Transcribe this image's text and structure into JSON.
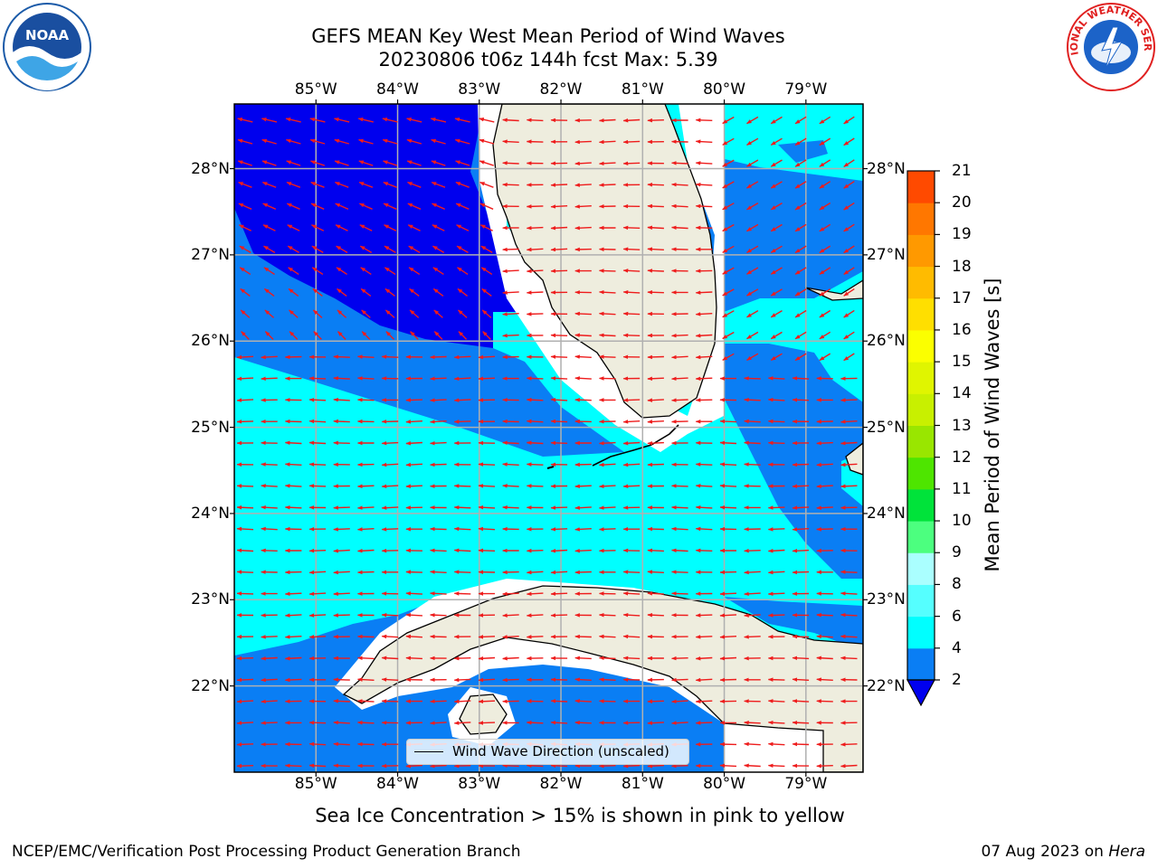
{
  "header": {
    "title_line1": "GEFS MEAN Key West Mean Period of Wind Waves",
    "title_line2": "20230806 t06z 144h fcst   Max: 5.39"
  },
  "logos": {
    "left": {
      "name": "noaa-logo",
      "text": "NOAA"
    },
    "right": {
      "name": "national-weather-service-logo",
      "text": "NATIONAL WEATHER SERVICE"
    }
  },
  "map": {
    "region": "Key West",
    "lon_range": [
      -86.0,
      -78.3
    ],
    "lat_range": [
      21.0,
      28.75
    ],
    "lon_labels": [
      "85°W",
      "84°W",
      "83°W",
      "82°W",
      "81°W",
      "80°W",
      "79°W"
    ],
    "lat_labels": [
      "28°N",
      "27°N",
      "26°N",
      "25°N",
      "24°N",
      "23°N",
      "22°N"
    ],
    "colors": {
      "land": "#eeedde",
      "ocean_below_2": "#0000ee",
      "band_2_4": "#0a7ef4",
      "band_4_6": "#00ffff",
      "arrows": "#ee1c1c",
      "grid": "#b0b0b0"
    }
  },
  "legend": {
    "label": "Wind Wave Direction (unscaled)"
  },
  "colorbar": {
    "label": "Mean Period of Wind Waves [s]",
    "ticks": [
      "2",
      "4",
      "6",
      "8",
      "9",
      "10",
      "11",
      "12",
      "13",
      "14",
      "15",
      "16",
      "17",
      "18",
      "19",
      "20",
      "21"
    ],
    "colors": [
      "#0a7ef4",
      "#00ffff",
      "#55ffff",
      "#aaffff",
      "#4cff7f",
      "#00e33a",
      "#4ee500",
      "#99e600",
      "#c8f000",
      "#e0f500",
      "#fbff00",
      "#ffdf00",
      "#ffbb00",
      "#ff9900",
      "#ff7700",
      "#ff4a00",
      "#ff1a00",
      "#ff0000"
    ],
    "extend_color": "#0000ee"
  },
  "footer": {
    "ice_note": "Sea Ice Concentration > 15% is shown in pink to yellow",
    "left": "NCEP/EMC/Verification Post Processing Product Generation Branch",
    "date": "07 Aug 2023",
    "on_word": "on",
    "host": "Hera"
  }
}
